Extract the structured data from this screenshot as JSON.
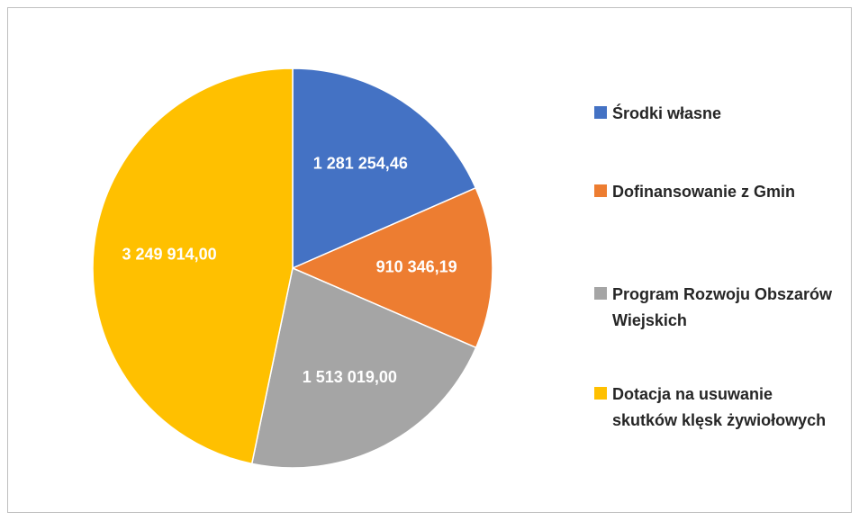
{
  "chart_data": {
    "type": "pie",
    "categories": [
      "Środki własne",
      "Dofinansowanie z Gmin",
      "Program Rozwoju Obszarów Wiejskich",
      "Dotacja na usuwanie skutków klęsk żywiołowych"
    ],
    "values": [
      1281254.46,
      910346.19,
      1513019.0,
      3249914.0
    ],
    "value_labels": [
      "1 281 254,46",
      "910 346,19",
      "1 513 019,00",
      "3 249 914,00"
    ],
    "colors": [
      "#4472c4",
      "#ed7d31",
      "#a5a5a5",
      "#ffc000"
    ],
    "legend": "right"
  }
}
